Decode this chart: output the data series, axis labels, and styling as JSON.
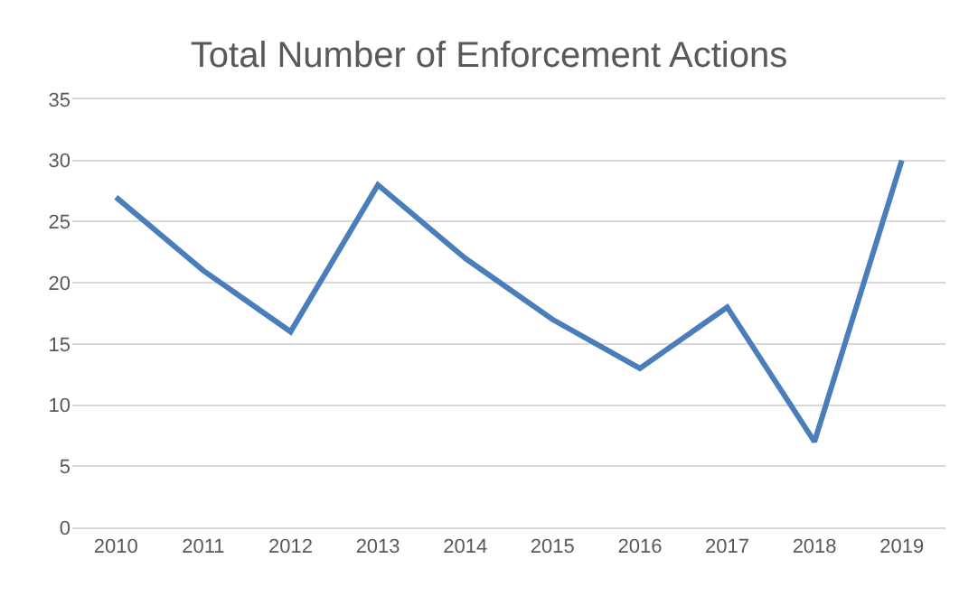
{
  "chart_data": {
    "type": "line",
    "title": "Total Number of Enforcement Actions",
    "categories": [
      "2010",
      "2011",
      "2012",
      "2013",
      "2014",
      "2015",
      "2016",
      "2017",
      "2018",
      "2019"
    ],
    "series": [
      {
        "color": "#4a7ebb",
        "values": [
          27,
          21,
          16,
          28,
          22,
          17,
          13,
          18,
          7,
          30
        ]
      }
    ],
    "ylim": [
      0,
      35
    ],
    "yticks": [
      0,
      5,
      10,
      15,
      20,
      25,
      30,
      35
    ],
    "grid": "y",
    "marker": "none",
    "line_style": "solid"
  }
}
